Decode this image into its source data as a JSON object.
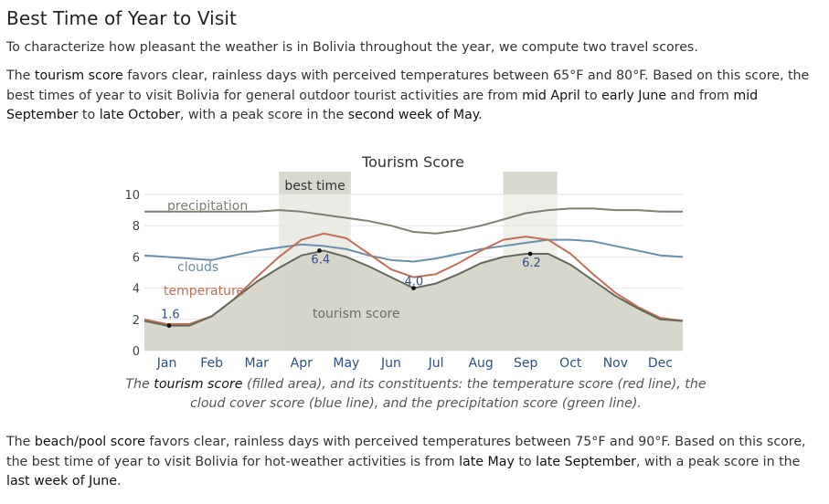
{
  "heading": "Best Time of Year to Visit",
  "intro": "To characterize how pleasant the weather is in Bolivia throughout the year, we compute two travel scores.",
  "tourism_paragraph": {
    "t1": "The ",
    "h1": "tourism score",
    "t2": " favors clear, rainless days with perceived temperatures between 65°F and 80°F. Based on this score, the best times of year to visit Bolivia for general outdoor tourist activities are from ",
    "h2": "mid April",
    "t3": " to ",
    "h3": "early June",
    "t4": " and from ",
    "h4": "mid September",
    "t5": " to ",
    "h5": "late October",
    "t6": ", with a peak score in the ",
    "h6": "second week of May",
    "t7": "."
  },
  "caption": {
    "t1": "The ",
    "h1": "tourism score",
    "t2": " (filled area), and its constituents: the temperature score (red line), the cloud cover score (blue line), and the precipitation score (green line)."
  },
  "beach_paragraph": {
    "t1": "The ",
    "h1": "beach/pool score",
    "t2": " favors clear, rainless days with perceived temperatures between 75°F and 90°F. Based on this score, the best time of year to visit Bolivia for hot-weather activities is from ",
    "h2": "late May",
    "t3": " to ",
    "h3": "late September",
    "t4": ", with a peak score in the ",
    "h4": "last week of June",
    "t5": "."
  },
  "chart_data": {
    "type": "area",
    "title": "Tourism Score",
    "ylim": [
      0,
      10
    ],
    "y_ticks": [
      "0",
      "2",
      "4",
      "6",
      "8",
      "10"
    ],
    "months": [
      "Jan",
      "Feb",
      "Mar",
      "Apr",
      "May",
      "Jun",
      "Jul",
      "Aug",
      "Sep",
      "Oct",
      "Nov",
      "Dec"
    ],
    "best_time_label": "best time",
    "best_time_bands": [
      [
        3.0,
        4.6
      ],
      [
        8.0,
        9.2
      ]
    ],
    "x": [
      0,
      0.5,
      1,
      1.5,
      2,
      2.5,
      3,
      3.5,
      4,
      4.5,
      5,
      5.5,
      6,
      6.5,
      7,
      7.5,
      8,
      8.5,
      9,
      9.5,
      10,
      10.5,
      11,
      11.5,
      12
    ],
    "series": [
      {
        "name": "precipitation",
        "color": "#7b8070",
        "values": [
          8.9,
          8.9,
          8.9,
          8.9,
          8.9,
          8.9,
          9.0,
          8.9,
          8.7,
          8.5,
          8.3,
          8.0,
          7.6,
          7.5,
          7.7,
          8.0,
          8.4,
          8.8,
          9.0,
          9.1,
          9.1,
          9.0,
          9.0,
          8.9,
          8.9
        ]
      },
      {
        "name": "clouds",
        "color": "#6b8fa7",
        "values": [
          6.1,
          6.0,
          5.9,
          5.8,
          6.1,
          6.4,
          6.6,
          6.8,
          6.7,
          6.5,
          6.1,
          5.8,
          5.7,
          5.9,
          6.2,
          6.5,
          6.7,
          6.9,
          7.1,
          7.1,
          7.0,
          6.7,
          6.4,
          6.1,
          6.0
        ]
      },
      {
        "name": "temperature",
        "color": "#c46e59",
        "values": [
          2.0,
          1.7,
          1.7,
          2.2,
          3.3,
          4.7,
          6.0,
          7.1,
          7.5,
          7.2,
          6.2,
          5.2,
          4.7,
          4.9,
          5.6,
          6.4,
          7.1,
          7.3,
          7.1,
          6.2,
          4.9,
          3.7,
          2.8,
          2.1,
          1.9
        ]
      },
      {
        "name": "tourism score",
        "color": "#66695a",
        "fill": "#d3d3c7",
        "values": [
          1.9,
          1.6,
          1.6,
          2.2,
          3.3,
          4.4,
          5.3,
          6.1,
          6.4,
          6.0,
          5.4,
          4.7,
          4.0,
          4.3,
          4.9,
          5.6,
          6.0,
          6.2,
          6.2,
          5.5,
          4.5,
          3.5,
          2.7,
          2.0,
          1.9
        ]
      }
    ],
    "annotations": [
      {
        "x": 0.55,
        "y": 1.6,
        "label": "1.6"
      },
      {
        "x": 3.9,
        "y": 6.4,
        "label": "6.4"
      },
      {
        "x": 6.0,
        "y": 4.0,
        "label": "4.0"
      },
      {
        "x": 8.6,
        "y": 6.2,
        "label": "6.2"
      }
    ]
  }
}
